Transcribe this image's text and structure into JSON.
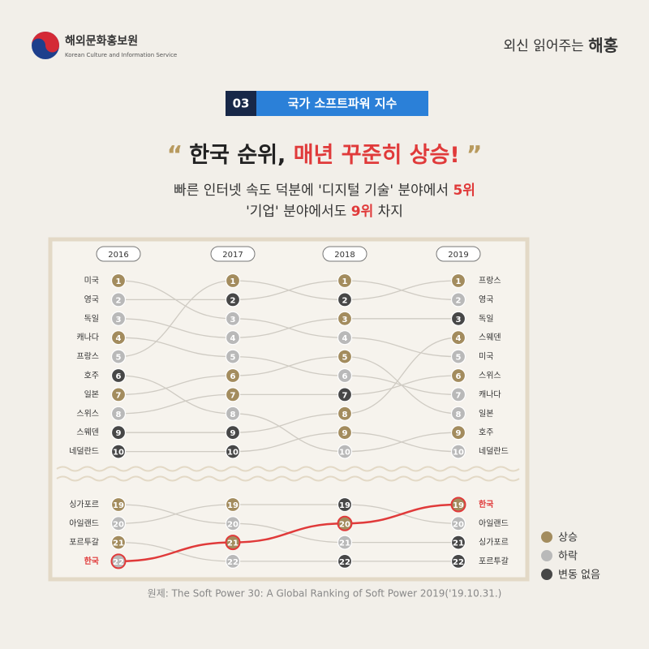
{
  "header": {
    "org_name": "해외문화홍보원",
    "org_name_en": "Korean Culture and Information Service",
    "tagline": "외신 읽어주는 ",
    "tagline_bold": "해홍"
  },
  "section": {
    "number": "03",
    "title": "국가 소프트파워 지수"
  },
  "headline": {
    "open_quote": "“",
    "text": "한국 순위, ",
    "highlight": "매년 꾸준히 상승!",
    "close_quote": "”"
  },
  "subtitle": [
    {
      "parts": [
        {
          "text": "빠른 인터넷 속도 덕분에 '디지털 기술' 분야에서 "
        },
        {
          "text": "5위",
          "color": "#e03a3a"
        }
      ]
    },
    {
      "parts": [
        {
          "text": "'기업' 분야에서도 "
        },
        {
          "text": "9위",
          "color": "#e03a3a"
        },
        {
          "text": " 차지"
        }
      ]
    }
  ],
  "chart_data": {
    "type": "bump",
    "years": [
      "2016",
      "2017",
      "2018",
      "2019"
    ],
    "line_color": "#cfcbc3",
    "series": [
      {
        "name": "미국",
        "ranks": [
          1,
          3,
          4,
          5
        ],
        "colors": [
          "#a38c5e",
          "#b9b9b9",
          "#b9b9b9",
          "#b9b9b9"
        ]
      },
      {
        "name": "영국",
        "ranks": [
          2,
          2,
          1,
          2
        ],
        "colors": [
          "#b9b9b9",
          "#474747",
          "#a38c5e",
          "#b9b9b9"
        ]
      },
      {
        "name": "독일",
        "ranks": [
          3,
          4,
          3,
          3
        ],
        "colors": [
          "#b9b9b9",
          "#b9b9b9",
          "#a38c5e",
          "#474747"
        ]
      },
      {
        "name": "캐나다",
        "ranks": [
          4,
          5,
          6,
          7
        ],
        "colors": [
          "#a38c5e",
          "#b9b9b9",
          "#b9b9b9",
          "#b9b9b9"
        ]
      },
      {
        "name": "프랑스",
        "ranks": [
          5,
          1,
          2,
          1
        ],
        "colors": [
          "#b9b9b9",
          "#a38c5e",
          "#474747",
          "#a38c5e"
        ]
      },
      {
        "name": "호주",
        "ranks": [
          6,
          8,
          10,
          9
        ],
        "colors": [
          "#474747",
          "#b9b9b9",
          "#b9b9b9",
          "#a38c5e"
        ]
      },
      {
        "name": "일본",
        "ranks": [
          7,
          6,
          5,
          8
        ],
        "colors": [
          "#a38c5e",
          "#a38c5e",
          "#a38c5e",
          "#b9b9b9"
        ]
      },
      {
        "name": "스위스",
        "ranks": [
          8,
          7,
          7,
          6
        ],
        "colors": [
          "#b9b9b9",
          "#a38c5e",
          "#474747",
          "#a38c5e"
        ]
      },
      {
        "name": "스웨덴",
        "ranks": [
          9,
          9,
          8,
          4
        ],
        "colors": [
          "#474747",
          "#474747",
          "#a38c5e",
          "#a38c5e"
        ]
      },
      {
        "name": "네덜란드",
        "ranks": [
          10,
          10,
          9,
          10
        ],
        "colors": [
          "#474747",
          "#474747",
          "#a38c5e",
          "#b9b9b9"
        ]
      },
      {
        "name": "싱가포르",
        "ranks": [
          19,
          20,
          21,
          21
        ],
        "colors": [
          "#a38c5e",
          "#b9b9b9",
          "#b9b9b9",
          "#474747"
        ]
      },
      {
        "name": "아일랜드",
        "ranks": [
          20,
          19,
          19,
          20
        ],
        "colors": [
          "#b9b9b9",
          "#a38c5e",
          "#474747",
          "#b9b9b9"
        ]
      },
      {
        "name": "포르투갈",
        "ranks": [
          21,
          22,
          22,
          22
        ],
        "colors": [
          "#a38c5e",
          "#b9b9b9",
          "#474747",
          "#474747"
        ]
      },
      {
        "name": "한국",
        "ranks": [
          22,
          21,
          20,
          19
        ],
        "colors": [
          "#b9b9b9",
          "#a38c5e",
          "#a38c5e",
          "#a38c5e"
        ],
        "highlight": "#e03a3a"
      }
    ]
  },
  "legend": [
    {
      "label": "상승",
      "color": "#a38c5e"
    },
    {
      "label": "하락",
      "color": "#b9b9b9"
    },
    {
      "label": "변동 없음",
      "color": "#474747"
    }
  ],
  "source": "원제: The Soft Power 30: A Global Ranking of Soft Power 2019('19.10.31.)"
}
